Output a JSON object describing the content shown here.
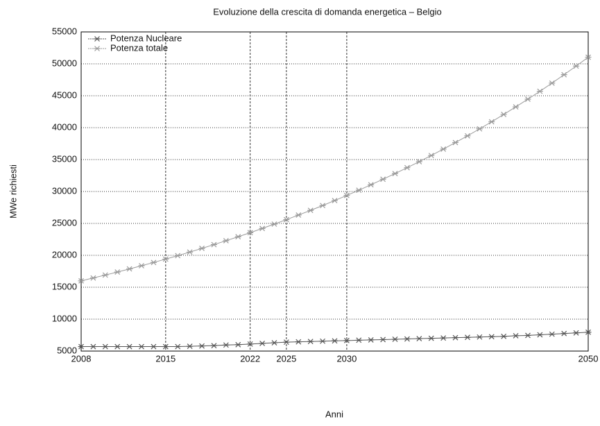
{
  "chart_data": {
    "type": "line",
    "title": "Evoluzione della crescita di domanda energetica – Belgio",
    "xlabel": "Anni",
    "ylabel": "MWe richiesti",
    "x": [
      2008,
      2009,
      2010,
      2011,
      2012,
      2013,
      2014,
      2015,
      2016,
      2017,
      2018,
      2019,
      2020,
      2021,
      2022,
      2023,
      2024,
      2025,
      2026,
      2027,
      2028,
      2029,
      2030,
      2031,
      2032,
      2033,
      2034,
      2035,
      2036,
      2037,
      2038,
      2039,
      2040,
      2041,
      2042,
      2043,
      2044,
      2045,
      2046,
      2047,
      2048,
      2049,
      2050
    ],
    "series": [
      {
        "name": "Potenza Nucleare",
        "color": "#555555",
        "values": [
          5700,
          5700,
          5700,
          5700,
          5700,
          5700,
          5700,
          5700,
          5700,
          5750,
          5800,
          5850,
          5950,
          6000,
          6100,
          6200,
          6300,
          6400,
          6450,
          6500,
          6550,
          6600,
          6650,
          6700,
          6750,
          6800,
          6850,
          6900,
          6950,
          7000,
          7050,
          7100,
          7150,
          7200,
          7250,
          7300,
          7400,
          7450,
          7550,
          7650,
          7750,
          7850,
          7950
        ]
      },
      {
        "name": "Potenza totale",
        "color": "#9a9a9a",
        "values": [
          16000,
          16450,
          16910,
          17380,
          17870,
          18370,
          18880,
          19410,
          19950,
          20510,
          21090,
          21680,
          22290,
          22910,
          23550,
          24210,
          24890,
          25590,
          26310,
          27040,
          27800,
          28580,
          29380,
          30200,
          31050,
          31920,
          32810,
          33730,
          34670,
          35640,
          36640,
          37670,
          38720,
          39810,
          40920,
          42070,
          43250,
          44460,
          45700,
          46980,
          48300,
          49650,
          51040
        ]
      }
    ],
    "xlim": [
      2008,
      2050
    ],
    "xticks": [
      2008,
      2015,
      2022,
      2025,
      2030,
      2050
    ],
    "ylim": [
      5000,
      55000
    ],
    "yticks": [
      5000,
      10000,
      15000,
      20000,
      25000,
      30000,
      35000,
      40000,
      45000,
      50000,
      55000
    ],
    "grid": true,
    "legend": "upper left"
  }
}
